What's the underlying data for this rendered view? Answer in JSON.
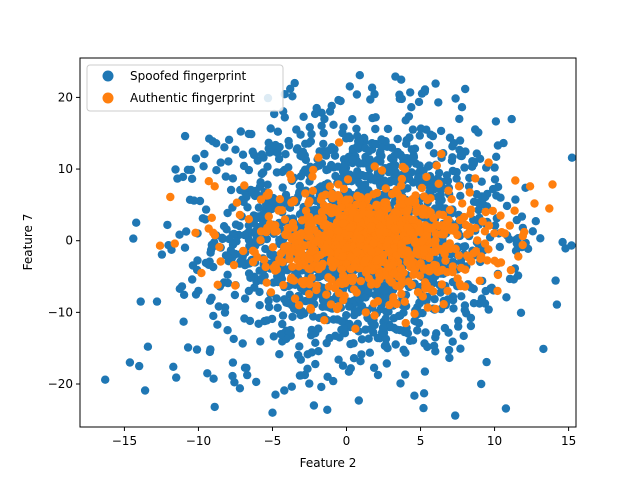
{
  "chart_data": {
    "type": "scatter",
    "xlabel": "Feature 2",
    "ylabel": "Feature 7",
    "xlim": [
      -18,
      15.5
    ],
    "ylim": [
      -26,
      25.5
    ],
    "xticks": [
      -15,
      -10,
      -5,
      0,
      5,
      10,
      15
    ],
    "yticks": [
      -20,
      -10,
      0,
      10,
      20
    ],
    "xtick_labels": [
      "−15",
      "−10",
      "−5",
      "0",
      "5",
      "10",
      "15"
    ],
    "ytick_labels": [
      "−20",
      "−10",
      "0",
      "10",
      "20"
    ],
    "grid": false,
    "legend_position": "upper-left",
    "series": [
      {
        "name": "Spoofed fingerprint",
        "color": "#1f77b4",
        "distribution": "approx. bivariate normal, center (0.8, 0.5), sd x ≈ 5, sd y ≈ 8.5, ~2000 points",
        "points": [
          [
            -16.3,
            -19.4
          ],
          [
            -14.4,
            0.3
          ],
          [
            -14.0,
            -17.5
          ],
          [
            -13.6,
            -20.9
          ],
          [
            -13.9,
            -8.5
          ],
          [
            -12.8,
            -8.5
          ],
          [
            -12.1,
            2.2
          ],
          [
            -11.7,
            -17.6
          ],
          [
            -11.5,
            -19.1
          ],
          [
            -11.0,
            -11.3
          ],
          [
            -10.9,
            14.6
          ],
          [
            -10.7,
            -14.9
          ],
          [
            -10.3,
            5.6
          ],
          [
            -10.1,
            -15.2
          ],
          [
            -9.6,
            12.1
          ],
          [
            -9.4,
            -18.5
          ],
          [
            -8.9,
            -23.2
          ],
          [
            -8.8,
            13.6
          ],
          [
            -8.5,
            10.9
          ],
          [
            -7.7,
            -18.9
          ],
          [
            -7.5,
            12.7
          ],
          [
            -7.2,
            -20.6
          ],
          [
            -6.6,
            14.9
          ],
          [
            -6.1,
            -19.7
          ],
          [
            -5.3,
            19.9
          ],
          [
            -5.0,
            -24.0
          ],
          [
            -4.2,
            -20.9
          ],
          [
            -3.8,
            21.2
          ],
          [
            -3.5,
            22.0
          ],
          [
            -2.9,
            17.3
          ],
          [
            -2.2,
            -23.0
          ],
          [
            -1.7,
            -20.4
          ],
          [
            -1.3,
            -23.6
          ],
          [
            -0.9,
            -19.6
          ],
          [
            -0.4,
            19.5
          ],
          [
            0.9,
            23.1
          ],
          [
            0.7,
            20.4
          ],
          [
            3.3,
            22.9
          ],
          [
            3.6,
            19.8
          ],
          [
            4.0,
            16.8
          ],
          [
            4.3,
            20.7
          ],
          [
            5.3,
            21.1
          ],
          [
            6.2,
            19.3
          ],
          [
            7.8,
            12.3
          ],
          [
            8.9,
            15.1
          ],
          [
            9.1,
            -20.0
          ],
          [
            8.4,
            -11.9
          ],
          [
            10.0,
            10.2
          ],
          [
            10.4,
            6.0
          ],
          [
            11.0,
            0.2
          ],
          [
            11.3,
            -5.4
          ],
          [
            11.5,
            -0.4
          ],
          [
            12.1,
            -0.3
          ],
          [
            13.3,
            -15.1
          ],
          [
            10.8,
            -7.9
          ],
          [
            9.9,
            7.2
          ],
          [
            7.2,
            -8.3
          ],
          [
            6.0,
            -13.5
          ],
          [
            -10.0,
            -7.0
          ],
          [
            -9.0,
            -10.5
          ]
        ]
      },
      {
        "name": "Authentic fingerprint",
        "color": "#ff7f0e",
        "distribution": "approx. bivariate normal, center (1.5, 0), sd x ≈ 3.5, sd y ≈ 3.8, ~1000 points",
        "points": [
          [
            -11.9,
            6.1
          ],
          [
            -11.6,
            -0.4
          ],
          [
            -12.6,
            -0.7
          ],
          [
            -10.2,
            1.1
          ],
          [
            -9.8,
            -4.5
          ],
          [
            -9.1,
            3.2
          ],
          [
            -9.0,
            1.1
          ],
          [
            -9.3,
            8.3
          ],
          [
            -8.9,
            7.6
          ],
          [
            -8.5,
            -2.9
          ],
          [
            -7.6,
            -3.4
          ],
          [
            -7.2,
            3.6
          ],
          [
            -7.4,
            5.3
          ],
          [
            -6.9,
            7.7
          ],
          [
            -6.6,
            3.0
          ],
          [
            -6.2,
            -1.6
          ],
          [
            -5.4,
            6.3
          ],
          [
            -5.1,
            -7.2
          ],
          [
            -4.5,
            5.8
          ],
          [
            -3.8,
            9.2
          ],
          [
            -3.2,
            -9.0
          ],
          [
            -2.4,
            -9.6
          ],
          [
            -1.9,
            11.6
          ],
          [
            -1.5,
            -11.1
          ],
          [
            -0.5,
            13.7
          ],
          [
            0.6,
            -12.3
          ],
          [
            1.3,
            -10.0
          ],
          [
            2.4,
            9.8
          ],
          [
            3.8,
            10.3
          ],
          [
            4.0,
            -11.5
          ],
          [
            4.6,
            -10.2
          ],
          [
            5.4,
            8.9
          ],
          [
            5.7,
            -6.8
          ],
          [
            6.4,
            12.1
          ],
          [
            6.8,
            -4.4
          ],
          [
            7.1,
            5.8
          ],
          [
            7.6,
            7.6
          ],
          [
            8.0,
            -6.4
          ],
          [
            8.3,
            1.9
          ],
          [
            8.7,
            8.7
          ],
          [
            9.0,
            -5.6
          ],
          [
            9.4,
            4.0
          ],
          [
            9.6,
            10.9
          ],
          [
            10.2,
            -7.0
          ],
          [
            10.4,
            3.5
          ],
          [
            10.7,
            1.0
          ],
          [
            11.1,
            -4.1
          ],
          [
            11.4,
            8.4
          ],
          [
            11.6,
            -2.2
          ],
          [
            12.4,
            7.6
          ],
          [
            12.7,
            5.2
          ],
          [
            13.7,
            4.5
          ],
          [
            12.0,
            1.2
          ],
          [
            11.9,
            -0.6
          ],
          [
            10.0,
            -2.8
          ]
        ]
      }
    ]
  }
}
